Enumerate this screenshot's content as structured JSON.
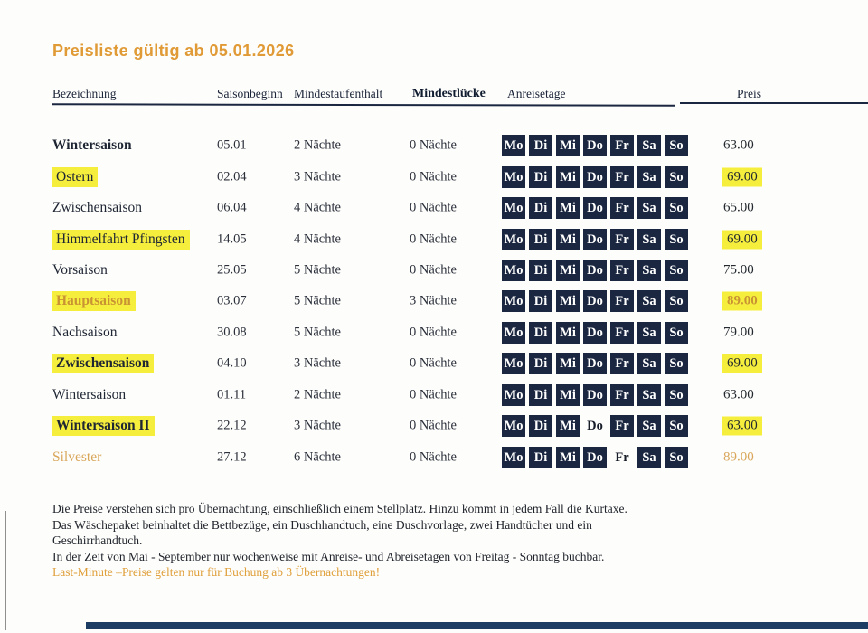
{
  "title": "Preisliste gültig ab 05.01.2026",
  "table": {
    "columns": [
      "Bezeichnung",
      "Saisonbeginn",
      "Mindestaufenthalt",
      "Mindestlücke",
      "Anreisetage",
      "Preis"
    ],
    "days": [
      "Mo",
      "Di",
      "Mi",
      "Do",
      "Fr",
      "Sa",
      "So"
    ],
    "rows": [
      {
        "name": "Wintersaison",
        "name_bold": true,
        "name_highlight": false,
        "name_style": "",
        "season_start": "05.01",
        "min_stay": "2 Nächte",
        "min_gap": "0 Nächte",
        "plain_day_indices": [],
        "price": "63.00",
        "price_highlight": false,
        "price_style": ""
      },
      {
        "name": "Ostern",
        "name_bold": false,
        "name_highlight": true,
        "name_style": "",
        "season_start": "02.04",
        "min_stay": "3 Nächte",
        "min_gap": "0 Nächte",
        "plain_day_indices": [],
        "price": "69.00",
        "price_highlight": true,
        "price_style": ""
      },
      {
        "name": "Zwischensaison",
        "name_bold": false,
        "name_highlight": false,
        "name_style": "",
        "season_start": "06.04",
        "min_stay": "4 Nächte",
        "min_gap": "0 Nächte",
        "plain_day_indices": [],
        "price": "65.00",
        "price_highlight": false,
        "price_style": ""
      },
      {
        "name": "Himmelfahrt Pfingsten",
        "name_bold": false,
        "name_highlight": true,
        "name_style": "",
        "season_start": "14.05",
        "min_stay": "4 Nächte",
        "min_gap": "0 Nächte",
        "plain_day_indices": [],
        "price": "69.00",
        "price_highlight": true,
        "price_style": ""
      },
      {
        "name": "Vorsaison",
        "name_bold": false,
        "name_highlight": false,
        "name_style": "",
        "season_start": "25.05",
        "min_stay": "5 Nächte",
        "min_gap": "0 Nächte",
        "plain_day_indices": [],
        "price": "75.00",
        "price_highlight": false,
        "price_style": ""
      },
      {
        "name": "Hauptsaison",
        "name_bold": true,
        "name_highlight": true,
        "name_style": "orange",
        "season_start": "03.07",
        "min_stay": "5 Nächte",
        "min_gap": "3 Nächte",
        "plain_day_indices": [],
        "price": "89.00",
        "price_highlight": true,
        "price_style": "orange"
      },
      {
        "name": "Nachsaison",
        "name_bold": false,
        "name_highlight": false,
        "name_style": "",
        "season_start": "30.08",
        "min_stay": "5 Nächte",
        "min_gap": "0 Nächte",
        "plain_day_indices": [],
        "price": "79.00",
        "price_highlight": false,
        "price_style": ""
      },
      {
        "name": "Zwischensaison",
        "name_bold": true,
        "name_highlight": true,
        "name_style": "",
        "season_start": "04.10",
        "min_stay": "3 Nächte",
        "min_gap": "0 Nächte",
        "plain_day_indices": [],
        "price": "69.00",
        "price_highlight": true,
        "price_style": ""
      },
      {
        "name": "Wintersaison",
        "name_bold": false,
        "name_highlight": false,
        "name_style": "",
        "season_start": "01.11",
        "min_stay": "2 Nächte",
        "min_gap": "0 Nächte",
        "plain_day_indices": [],
        "price": "63.00",
        "price_highlight": false,
        "price_style": ""
      },
      {
        "name": "Wintersaison II",
        "name_bold": true,
        "name_highlight": true,
        "name_style": "",
        "season_start": "22.12",
        "min_stay": "3 Nächte",
        "min_gap": "0 Nächte",
        "plain_day_indices": [
          3
        ],
        "price": "63.00",
        "price_highlight": true,
        "price_style": ""
      },
      {
        "name": "Silvester",
        "name_bold": false,
        "name_highlight": false,
        "name_style": "orange-light",
        "season_start": "27.12",
        "min_stay": "6 Nächte",
        "min_gap": "0 Nächte",
        "plain_day_indices": [
          4
        ],
        "price": "89.00",
        "price_highlight": false,
        "price_style": "orange-light"
      }
    ]
  },
  "notes": [
    "Die Preise verstehen sich pro Übernachtung, einschließlich einem Stellplatz. Hinzu kommt in jedem Fall die Kurtaxe.",
    "Das Wäschepaket beinhaltet die Bettbezüge, ein Duschhandtuch, eine Duschvorlage, zwei Handtücher und ein",
    "Geschirrhandtuch.",
    "In der Zeit von Mai - September nur wochenweise mit Anreise- und Abreisetagen von Freitag - Sonntag buchbar.",
    "Last-Minute –Preise gelten nur für Buchung ab 3 Übernachtungen!"
  ],
  "colors": {
    "accent_orange": "#E09A36",
    "day_box_navy": "#1B2740",
    "highlight_yellow": "#F6EE3C",
    "bottom_bar_navy": "#1d3c64"
  }
}
